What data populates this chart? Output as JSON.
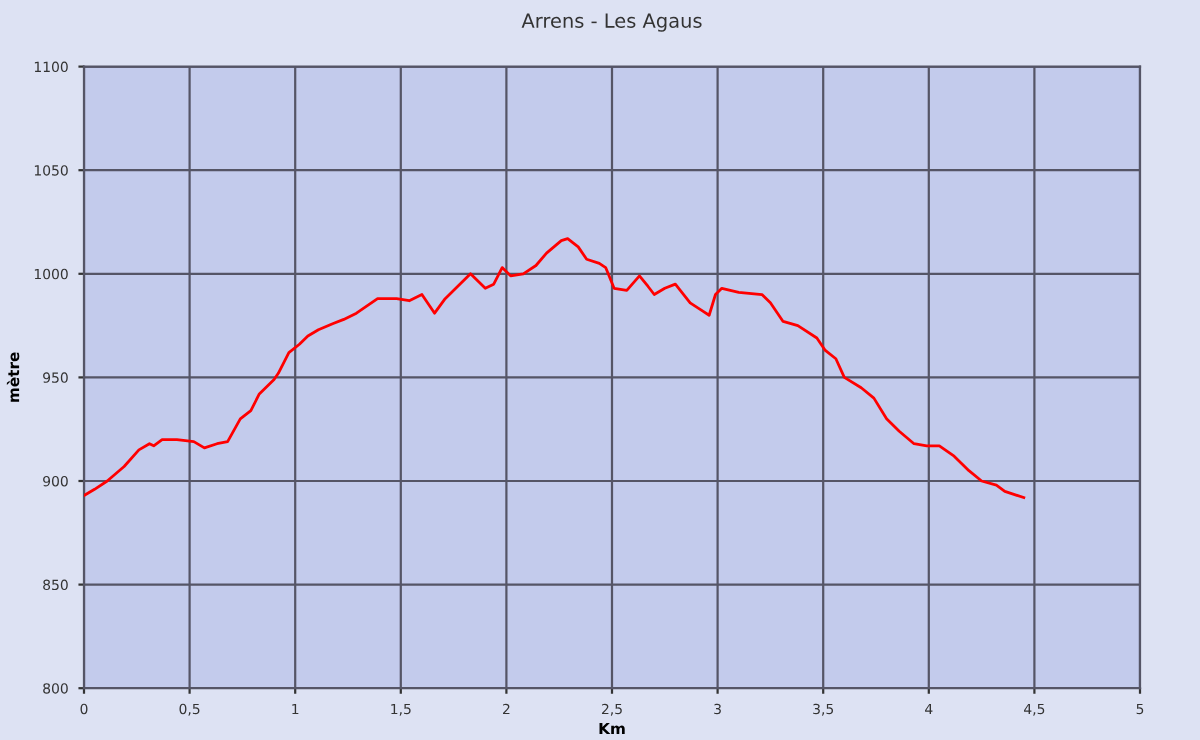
{
  "chart_data": {
    "type": "line",
    "title": "Arrens - Les Agaus",
    "xlabel": "Km",
    "ylabel": "mètre",
    "xlim": [
      0,
      5
    ],
    "ylim": [
      800,
      1100
    ],
    "xticks": [
      0,
      {
        "value": 0.5,
        "label": "0,5"
      },
      1,
      {
        "value": 1.5,
        "label": "1,5"
      },
      2,
      {
        "value": 2.5,
        "label": "2,5"
      },
      3,
      {
        "value": 3.5,
        "label": "3,5"
      },
      4,
      {
        "value": 4.5,
        "label": "4,5"
      },
      5
    ],
    "yticks": [
      800,
      850,
      900,
      950,
      1000,
      1050,
      1100
    ],
    "grid": true,
    "marker": "none",
    "line_style": "solid",
    "series": [
      {
        "color": "#ff0000",
        "x": [
          0,
          0.05,
          0.11,
          0.19,
          0.26,
          0.31,
          0.33,
          0.37,
          0.44,
          0.52,
          0.57,
          0.63,
          0.68,
          0.74,
          0.79,
          0.83,
          0.9,
          0.92,
          0.97,
          1.02,
          1.06,
          1.11,
          1.18,
          1.23,
          1.29,
          1.39,
          1.48,
          1.54,
          1.6,
          1.66,
          1.71,
          1.83,
          1.87,
          1.9,
          1.94,
          1.98,
          2.02,
          2.08,
          2.14,
          2.19,
          2.26,
          2.29,
          2.34,
          2.38,
          2.44,
          2.47,
          2.51,
          2.57,
          2.63,
          2.67,
          2.7,
          2.75,
          2.8,
          2.87,
          2.93,
          2.96,
          2.99,
          3.02,
          3.1,
          3.21,
          3.25,
          3.31,
          3.38,
          3.47,
          3.51,
          3.56,
          3.6,
          3.68,
          3.74,
          3.8,
          3.86,
          3.93,
          3.99,
          4.05,
          4.12,
          4.19,
          4.25,
          4.32,
          4.36,
          4.45
        ],
        "values": [
          893,
          896,
          900,
          907,
          915,
          918,
          917,
          920,
          920,
          919,
          916,
          918,
          919,
          930,
          934,
          942,
          949,
          952,
          962,
          966,
          970,
          973,
          976,
          978,
          981,
          988,
          988,
          987,
          990,
          981,
          988,
          1000,
          996,
          993,
          995,
          1003,
          999,
          1000,
          1004,
          1010,
          1016,
          1017,
          1013,
          1007,
          1005,
          1003,
          993,
          992,
          999,
          994,
          990,
          993,
          995,
          986,
          982,
          980,
          990,
          993,
          991,
          990,
          986,
          977,
          975,
          969,
          963,
          959,
          950,
          945,
          940,
          930,
          924,
          918,
          917,
          917,
          912,
          905,
          900,
          898,
          895,
          892
        ]
      }
    ]
  }
}
